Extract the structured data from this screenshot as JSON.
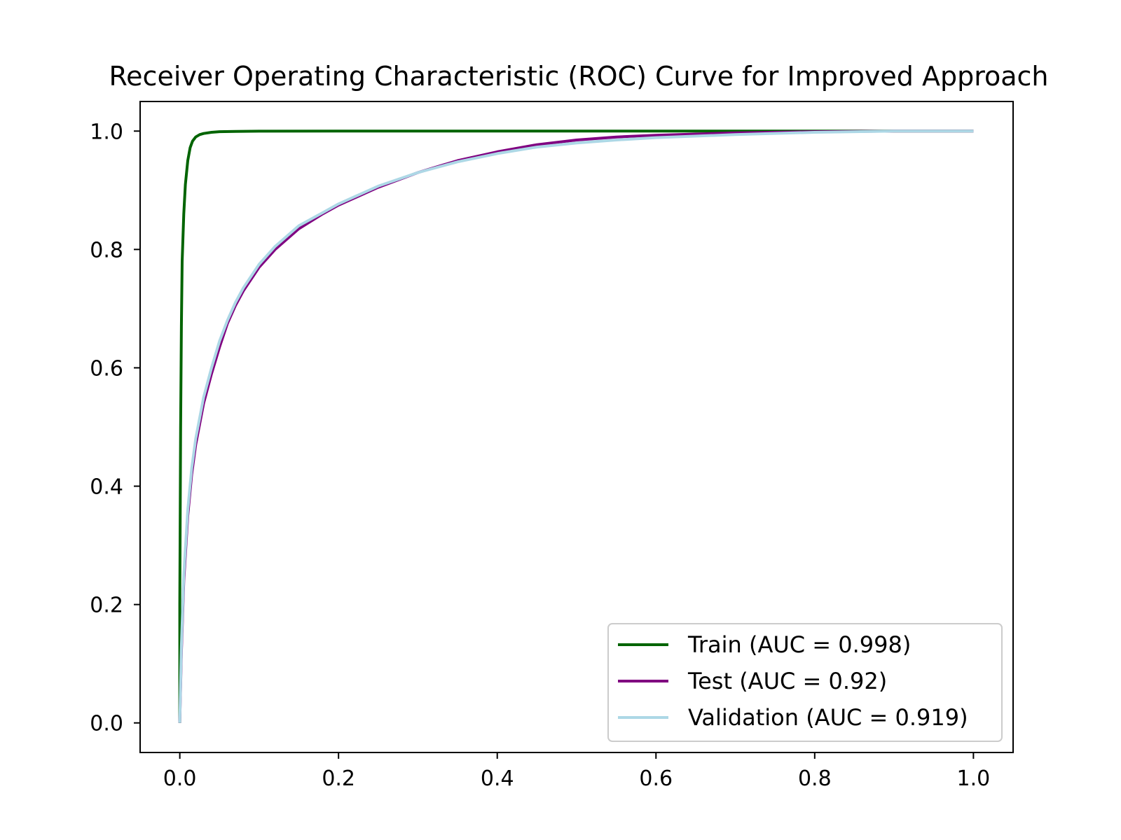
{
  "chart_data": {
    "type": "line",
    "title": "Receiver Operating Characteristic (ROC) Curve for Improved Approach",
    "xlabel": "",
    "ylabel": "",
    "xlim": [
      -0.05,
      1.05
    ],
    "ylim": [
      -0.05,
      1.05
    ],
    "xticks": [
      0.0,
      0.2,
      0.4,
      0.6,
      0.8,
      1.0
    ],
    "yticks": [
      0.0,
      0.2,
      0.4,
      0.6,
      0.8,
      1.0
    ],
    "xtick_labels": [
      "0.0",
      "0.2",
      "0.4",
      "0.6",
      "0.8",
      "1.0"
    ],
    "ytick_labels": [
      "0.0",
      "0.2",
      "0.4",
      "0.6",
      "0.8",
      "1.0"
    ],
    "grid": false,
    "legend_position": "lower-right",
    "series": [
      {
        "name": "Train (AUC = 0.998)",
        "color": "#006400",
        "x": [
          0,
          0,
          0.001,
          0.002,
          0.003,
          0.005,
          0.007,
          0.01,
          0.013,
          0.016,
          0.02,
          0.025,
          0.03,
          0.04,
          0.05,
          0.07,
          0.1,
          0.2,
          0.4,
          0.6,
          0.8,
          1.0
        ],
        "y": [
          0,
          0.2,
          0.5,
          0.67,
          0.78,
          0.86,
          0.91,
          0.95,
          0.972,
          0.983,
          0.99,
          0.994,
          0.996,
          0.998,
          0.999,
          0.9995,
          0.9998,
          1.0,
          1.0,
          1.0,
          1.0,
          1.0
        ]
      },
      {
        "name": "Test (AUC = 0.92)",
        "color": "#800080",
        "x": [
          0,
          0.002,
          0.005,
          0.01,
          0.015,
          0.02,
          0.03,
          0.04,
          0.05,
          0.06,
          0.07,
          0.08,
          0.1,
          0.12,
          0.15,
          0.18,
          0.2,
          0.25,
          0.3,
          0.35,
          0.4,
          0.45,
          0.5,
          0.55,
          0.6,
          0.7,
          0.8,
          0.9,
          1.0
        ],
        "y": [
          0,
          0.12,
          0.24,
          0.35,
          0.42,
          0.47,
          0.54,
          0.59,
          0.635,
          0.675,
          0.705,
          0.73,
          0.77,
          0.8,
          0.835,
          0.86,
          0.875,
          0.905,
          0.93,
          0.95,
          0.965,
          0.977,
          0.985,
          0.99,
          0.993,
          0.997,
          0.999,
          1.0,
          1.0
        ]
      },
      {
        "name": "Validation (AUC = 0.919)",
        "color": "#ADD8E6",
        "x": [
          0,
          0.002,
          0.005,
          0.01,
          0.015,
          0.02,
          0.03,
          0.04,
          0.05,
          0.06,
          0.07,
          0.08,
          0.1,
          0.12,
          0.15,
          0.18,
          0.2,
          0.25,
          0.3,
          0.35,
          0.4,
          0.45,
          0.5,
          0.55,
          0.6,
          0.7,
          0.8,
          0.9,
          1.0
        ],
        "y": [
          0,
          0.13,
          0.25,
          0.36,
          0.43,
          0.48,
          0.55,
          0.6,
          0.645,
          0.68,
          0.71,
          0.735,
          0.775,
          0.805,
          0.84,
          0.862,
          0.877,
          0.907,
          0.93,
          0.948,
          0.962,
          0.973,
          0.98,
          0.985,
          0.989,
          0.994,
          0.998,
          1.0,
          1.0
        ]
      }
    ]
  }
}
